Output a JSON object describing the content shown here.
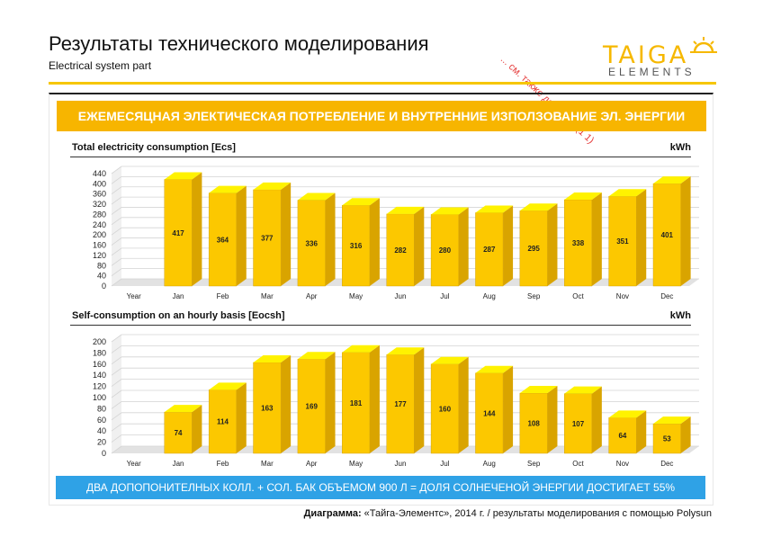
{
  "header": {
    "title": "Результаты технического моделирования",
    "subtitle": "Electrical system part",
    "stamp": "... см. также документ (1 1)"
  },
  "logo": {
    "word": "TAIGA",
    "sub": "ELEMENTS"
  },
  "banner": "ЕЖЕМЕСЯЦНАЯ ЭЛЕКТИЧЕСКАЯ ПОТРЕБЛЕНИЕ И ВНУТРЕННИЕ ИЗПОЛЗОВАНИЕ ЭЛ. ЭНЕРГИИ",
  "footer_bar": "ДВА ДОПОПОНИТЕЛНЫХ  КОЛЛ. + СОЛ. БАК ОБЪЕМОМ 900 Л = ДОЛЯ СОЛНЕЧЕНОЙ ЭНЕРГИИ ДОСТИГАЕТ 55%",
  "caption": {
    "label": "Диаграмма:",
    "text": " «Тайга-Элементс», 2014 г. / результаты моделирования с помощью Polysun"
  },
  "colors": {
    "bar_front": "#fcc800",
    "bar_side": "#d9a400",
    "bar_top": "#fff200",
    "banner": "#f7b500",
    "footer": "#2fa2e6",
    "accent_line": "#f6c600"
  },
  "chart_data": [
    {
      "type": "bar",
      "title": "Total electricity consumption [Ecs]",
      "unit": "kWh",
      "categories": [
        "Year",
        "Jan",
        "Feb",
        "Mar",
        "Apr",
        "May",
        "Jun",
        "Jul",
        "Aug",
        "Sep",
        "Oct",
        "Nov",
        "Dec"
      ],
      "values": [
        null,
        417,
        364,
        377,
        336,
        316,
        282,
        280,
        287,
        295,
        338,
        351,
        401
      ],
      "ylim": [
        0,
        440
      ],
      "yticks": [
        0,
        40,
        80,
        120,
        160,
        200,
        240,
        280,
        320,
        360,
        400,
        440
      ],
      "grid": true,
      "legend": "none"
    },
    {
      "type": "bar",
      "title": "Self-consumption on an hourly basis [Eocsh]",
      "unit": "kWh",
      "categories": [
        "Year",
        "Jan",
        "Feb",
        "Mar",
        "Apr",
        "May",
        "Jun",
        "Jul",
        "Aug",
        "Sep",
        "Oct",
        "Nov",
        "Dec"
      ],
      "values": [
        null,
        74,
        114,
        163,
        169,
        181,
        177,
        160,
        144,
        108,
        107,
        64,
        53
      ],
      "ylim": [
        0,
        200
      ],
      "yticks": [
        0,
        20,
        40,
        60,
        80,
        100,
        120,
        140,
        160,
        180,
        200
      ],
      "grid": true,
      "legend": "none"
    }
  ]
}
